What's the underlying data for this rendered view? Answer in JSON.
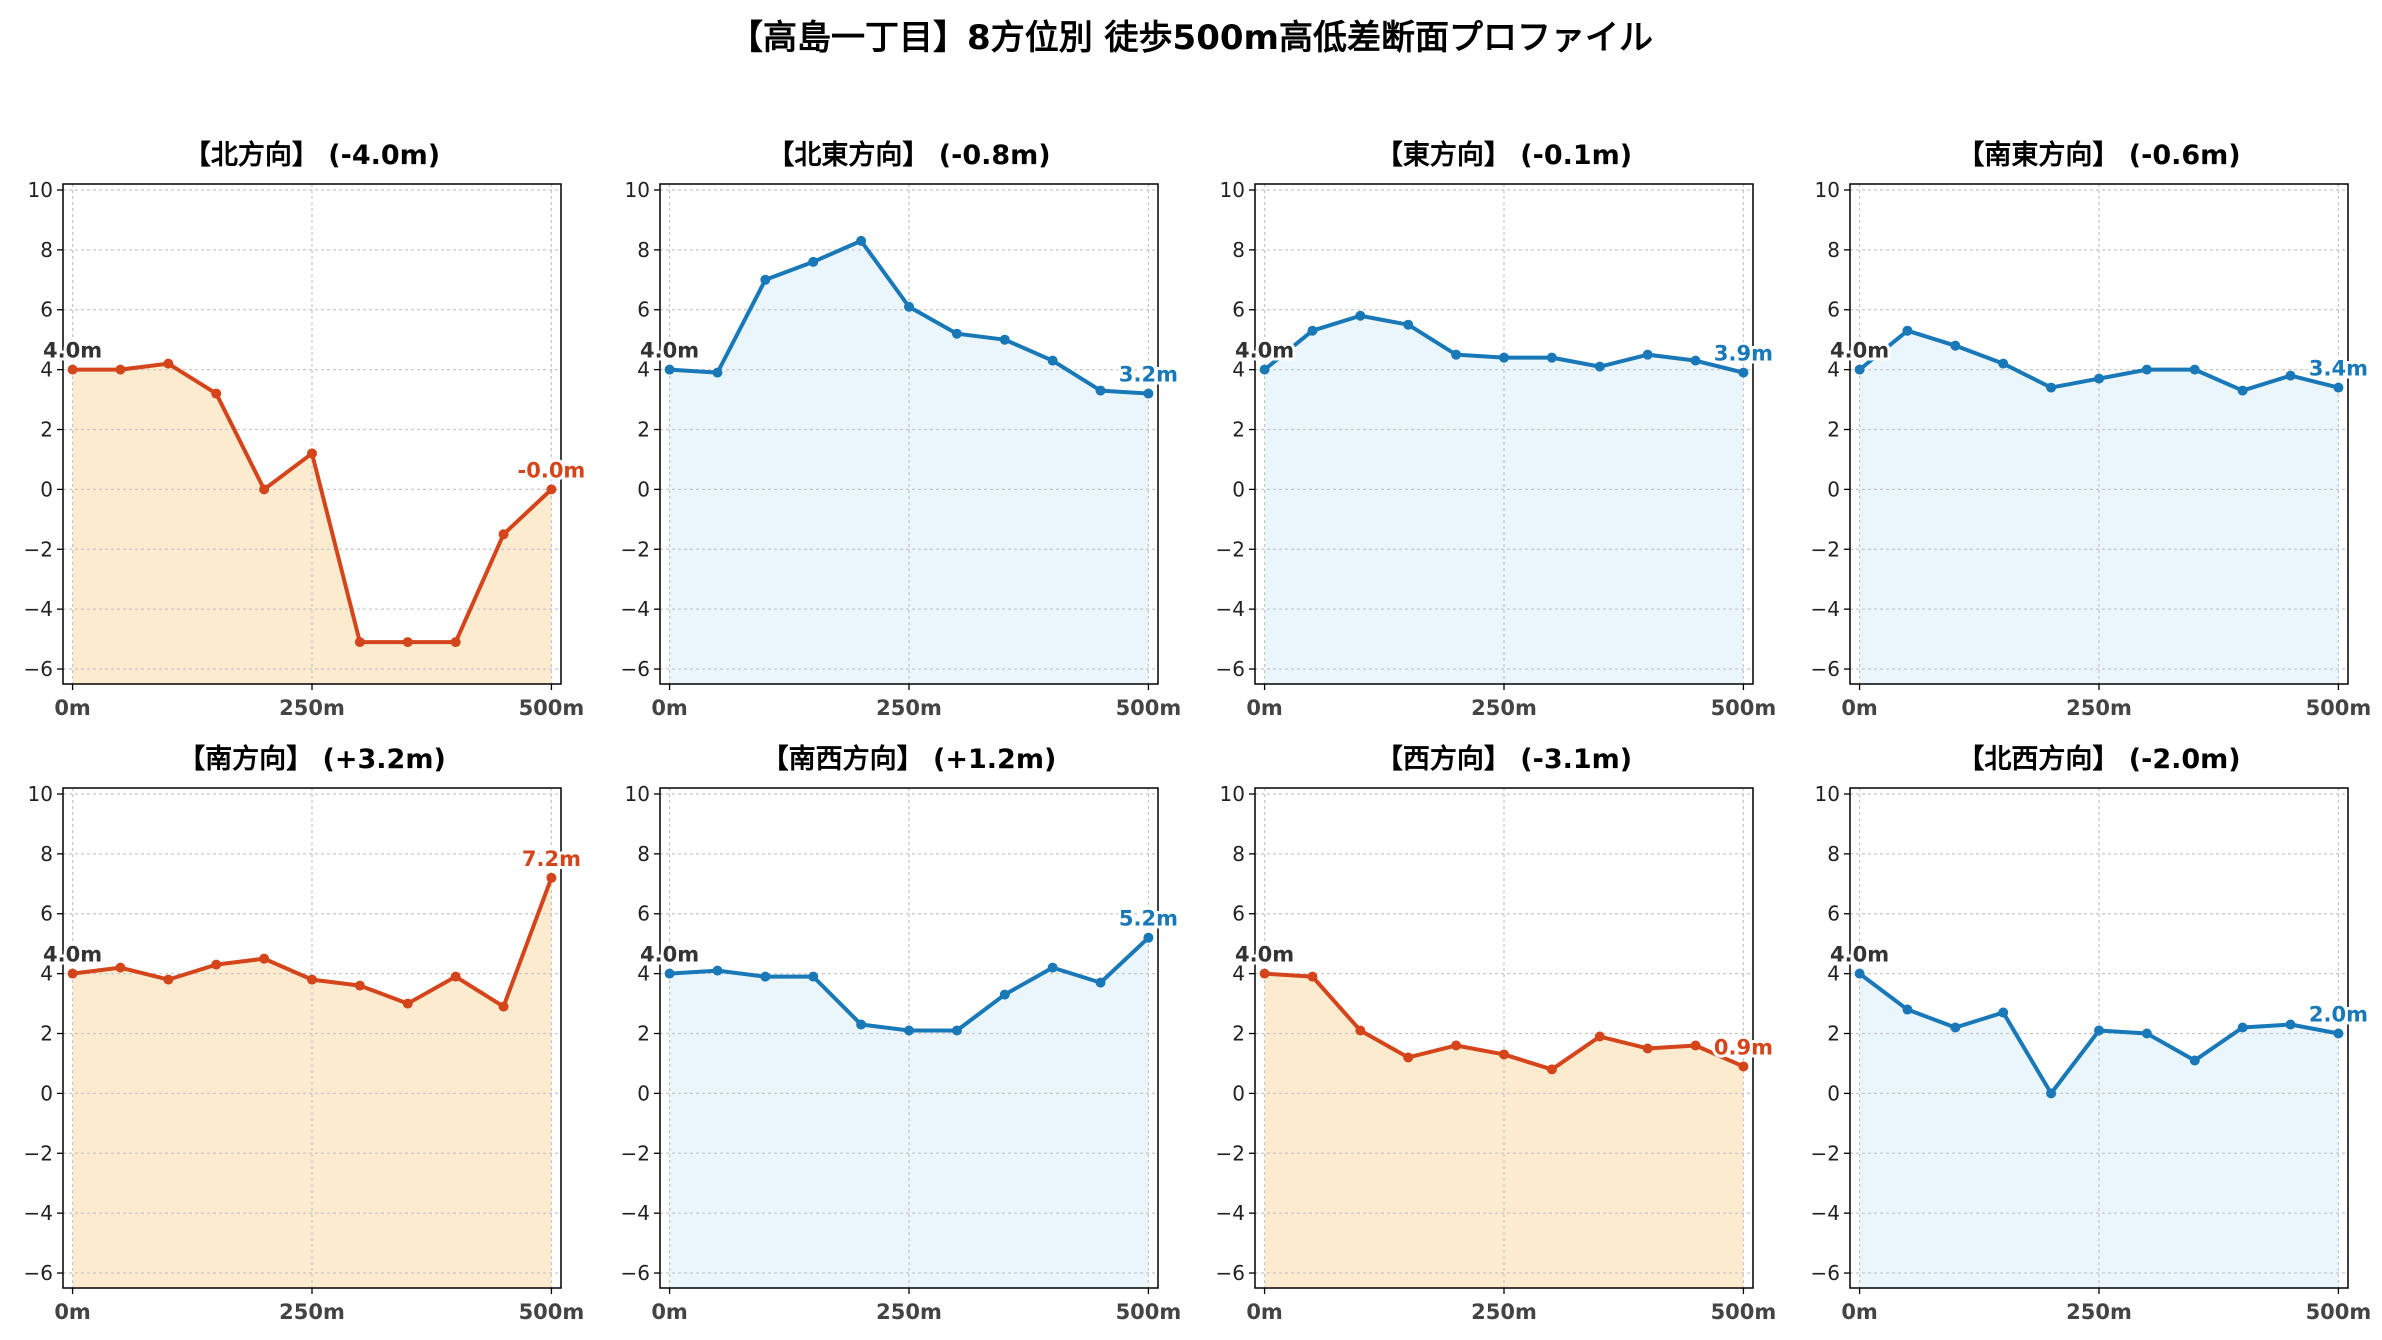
{
  "title": "【高島一丁目】8方位別 徒歩500m高低差断面プロファイル",
  "colors": {
    "descend_line": "#d4451b",
    "descend_fill": "#fdebd0",
    "ascend_line": "#1878b8",
    "ascend_fill": "#eaf6fb",
    "start_label": "#333333"
  },
  "chart_data": [
    {
      "type": "line",
      "title": "【北方向】 (-4.0m)",
      "color": "descend",
      "x": [
        0,
        50,
        100,
        150,
        200,
        250,
        300,
        350,
        400,
        450,
        500
      ],
      "values": [
        4.0,
        4.0,
        4.2,
        3.2,
        0.0,
        1.2,
        -5.1,
        -5.1,
        -5.1,
        -1.5,
        0.0
      ],
      "start_label": "4.0m",
      "end_label": "-0.0m",
      "xticks": [
        "0m",
        "250m",
        "500m"
      ],
      "ylim": [
        -6.5,
        10.2
      ],
      "yticks": [
        -6,
        -4,
        -2,
        0,
        2,
        4,
        6,
        8,
        10
      ],
      "grid": true
    },
    {
      "type": "line",
      "title": "【北東方向】 (-0.8m)",
      "color": "ascend",
      "x": [
        0,
        50,
        100,
        150,
        200,
        250,
        300,
        350,
        400,
        450,
        500
      ],
      "values": [
        4.0,
        3.9,
        7.0,
        7.6,
        8.3,
        6.1,
        5.2,
        5.0,
        4.3,
        3.3,
        3.2
      ],
      "start_label": "4.0m",
      "end_label": "3.2m",
      "xticks": [
        "0m",
        "250m",
        "500m"
      ],
      "ylim": [
        -6.5,
        10.2
      ],
      "yticks": [
        -6,
        -4,
        -2,
        0,
        2,
        4,
        6,
        8,
        10
      ],
      "grid": true
    },
    {
      "type": "line",
      "title": "【東方向】 (-0.1m)",
      "color": "ascend",
      "x": [
        0,
        50,
        100,
        150,
        200,
        250,
        300,
        350,
        400,
        450,
        500
      ],
      "values": [
        4.0,
        5.3,
        5.8,
        5.5,
        4.5,
        4.4,
        4.4,
        4.1,
        4.5,
        4.3,
        3.9
      ],
      "start_label": "4.0m",
      "end_label": "3.9m",
      "xticks": [
        "0m",
        "250m",
        "500m"
      ],
      "ylim": [
        -6.5,
        10.2
      ],
      "yticks": [
        -6,
        -4,
        -2,
        0,
        2,
        4,
        6,
        8,
        10
      ],
      "grid": true
    },
    {
      "type": "line",
      "title": "【南東方向】 (-0.6m)",
      "color": "ascend",
      "x": [
        0,
        50,
        100,
        150,
        200,
        250,
        300,
        350,
        400,
        450,
        500
      ],
      "values": [
        4.0,
        5.3,
        4.8,
        4.2,
        3.4,
        3.7,
        4.0,
        4.0,
        3.3,
        3.8,
        3.4
      ],
      "start_label": "4.0m",
      "end_label": "3.4m",
      "xticks": [
        "0m",
        "250m",
        "500m"
      ],
      "ylim": [
        -6.5,
        10.2
      ],
      "yticks": [
        -6,
        -4,
        -2,
        0,
        2,
        4,
        6,
        8,
        10
      ],
      "grid": true
    },
    {
      "type": "line",
      "title": "【南方向】 (+3.2m)",
      "color": "descend",
      "x": [
        0,
        50,
        100,
        150,
        200,
        250,
        300,
        350,
        400,
        450,
        500
      ],
      "values": [
        4.0,
        4.2,
        3.8,
        4.3,
        4.5,
        3.8,
        3.6,
        3.0,
        3.9,
        2.9,
        7.2
      ],
      "start_label": "4.0m",
      "end_label": "7.2m",
      "xticks": [
        "0m",
        "250m",
        "500m"
      ],
      "ylim": [
        -6.5,
        10.2
      ],
      "yticks": [
        -6,
        -4,
        -2,
        0,
        2,
        4,
        6,
        8,
        10
      ],
      "grid": true
    },
    {
      "type": "line",
      "title": "【南西方向】 (+1.2m)",
      "color": "ascend",
      "x": [
        0,
        50,
        100,
        150,
        200,
        250,
        300,
        350,
        400,
        450,
        500
      ],
      "values": [
        4.0,
        4.1,
        3.9,
        3.9,
        2.3,
        2.1,
        2.1,
        3.3,
        4.2,
        3.7,
        5.2
      ],
      "start_label": "4.0m",
      "end_label": "5.2m",
      "xticks": [
        "0m",
        "250m",
        "500m"
      ],
      "ylim": [
        -6.5,
        10.2
      ],
      "yticks": [
        -6,
        -4,
        -2,
        0,
        2,
        4,
        6,
        8,
        10
      ],
      "grid": true
    },
    {
      "type": "line",
      "title": "【西方向】 (-3.1m)",
      "color": "descend",
      "x": [
        0,
        50,
        100,
        150,
        200,
        250,
        300,
        350,
        400,
        450,
        500
      ],
      "values": [
        4.0,
        3.9,
        2.1,
        1.2,
        1.6,
        1.3,
        0.8,
        1.9,
        1.5,
        1.6,
        0.9
      ],
      "start_label": "4.0m",
      "end_label": "0.9m",
      "xticks": [
        "0m",
        "250m",
        "500m"
      ],
      "ylim": [
        -6.5,
        10.2
      ],
      "yticks": [
        -6,
        -4,
        -2,
        0,
        2,
        4,
        6,
        8,
        10
      ],
      "grid": true
    },
    {
      "type": "line",
      "title": "【北西方向】 (-2.0m)",
      "color": "ascend",
      "x": [
        0,
        50,
        100,
        150,
        200,
        250,
        300,
        350,
        400,
        450,
        500
      ],
      "values": [
        4.0,
        2.8,
        2.2,
        2.7,
        0.0,
        2.1,
        2.0,
        1.1,
        2.2,
        2.3,
        2.0
      ],
      "start_label": "4.0m",
      "end_label": "2.0m",
      "xticks": [
        "0m",
        "250m",
        "500m"
      ],
      "ylim": [
        -6.5,
        10.2
      ],
      "yticks": [
        -6,
        -4,
        -2,
        0,
        2,
        4,
        6,
        8,
        10
      ],
      "grid": true
    }
  ]
}
